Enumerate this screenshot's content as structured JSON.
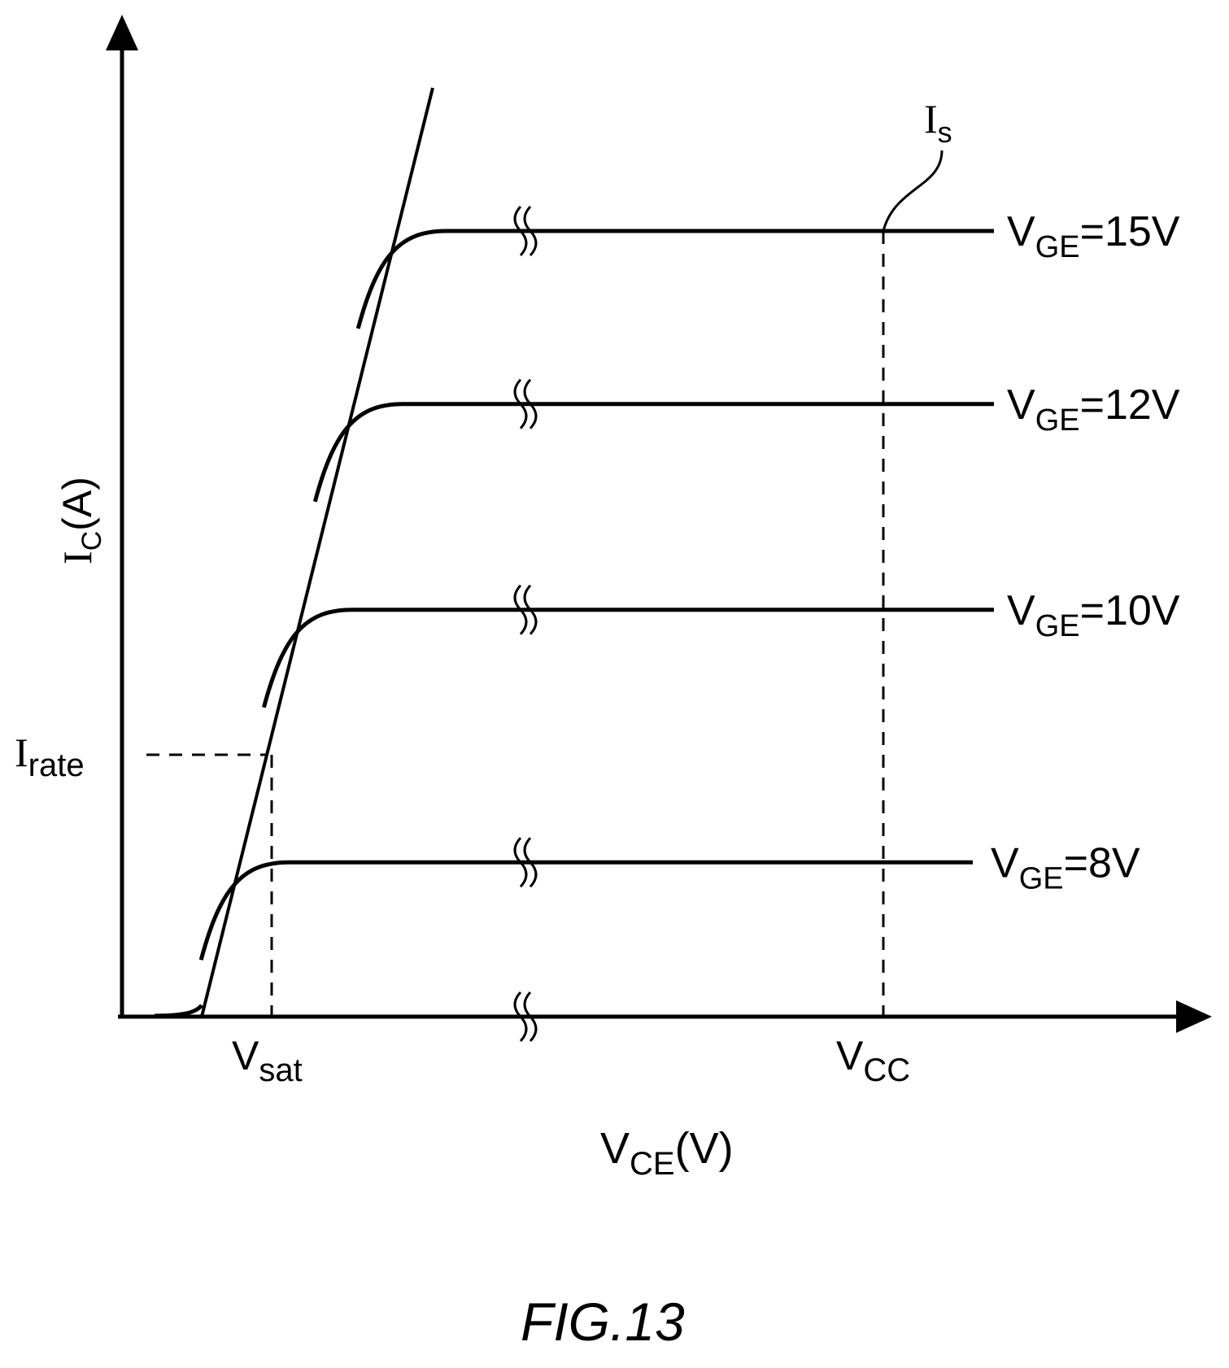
{
  "chart_data": {
    "type": "line",
    "title": "",
    "y_axis": {
      "symbol": "I",
      "sub": "C",
      "unit": "(A)"
    },
    "x_axis": {
      "symbol": "V",
      "sub": "CE",
      "unit": "(V)"
    },
    "x_ticks": [
      {
        "symbol": "V",
        "sub": "sat"
      },
      {
        "symbol": "V",
        "sub": "CC"
      }
    ],
    "y_ticks": [
      {
        "symbol": "I",
        "sub": "rate"
      }
    ],
    "annotation": {
      "symbol": "I",
      "sub": "s"
    },
    "series": [
      {
        "label_symbol": "V",
        "label_sub": "GE",
        "label_value": "=15V",
        "vge": 15,
        "saturation_current": 0.84
      },
      {
        "label_symbol": "V",
        "label_sub": "GE",
        "label_value": "=12V",
        "vge": 12,
        "saturation_current": 0.655
      },
      {
        "label_symbol": "V",
        "label_sub": "GE",
        "label_value": "=10V",
        "vge": 10,
        "saturation_current": 0.435
      },
      {
        "label_symbol": "V",
        "label_sub": "GE",
        "label_value": "=8V",
        "vge": 8,
        "saturation_current": 0.165
      }
    ],
    "rated_current": 0.28,
    "grid": false,
    "legend": "none",
    "axis_break": true
  },
  "caption": "FIG.13"
}
